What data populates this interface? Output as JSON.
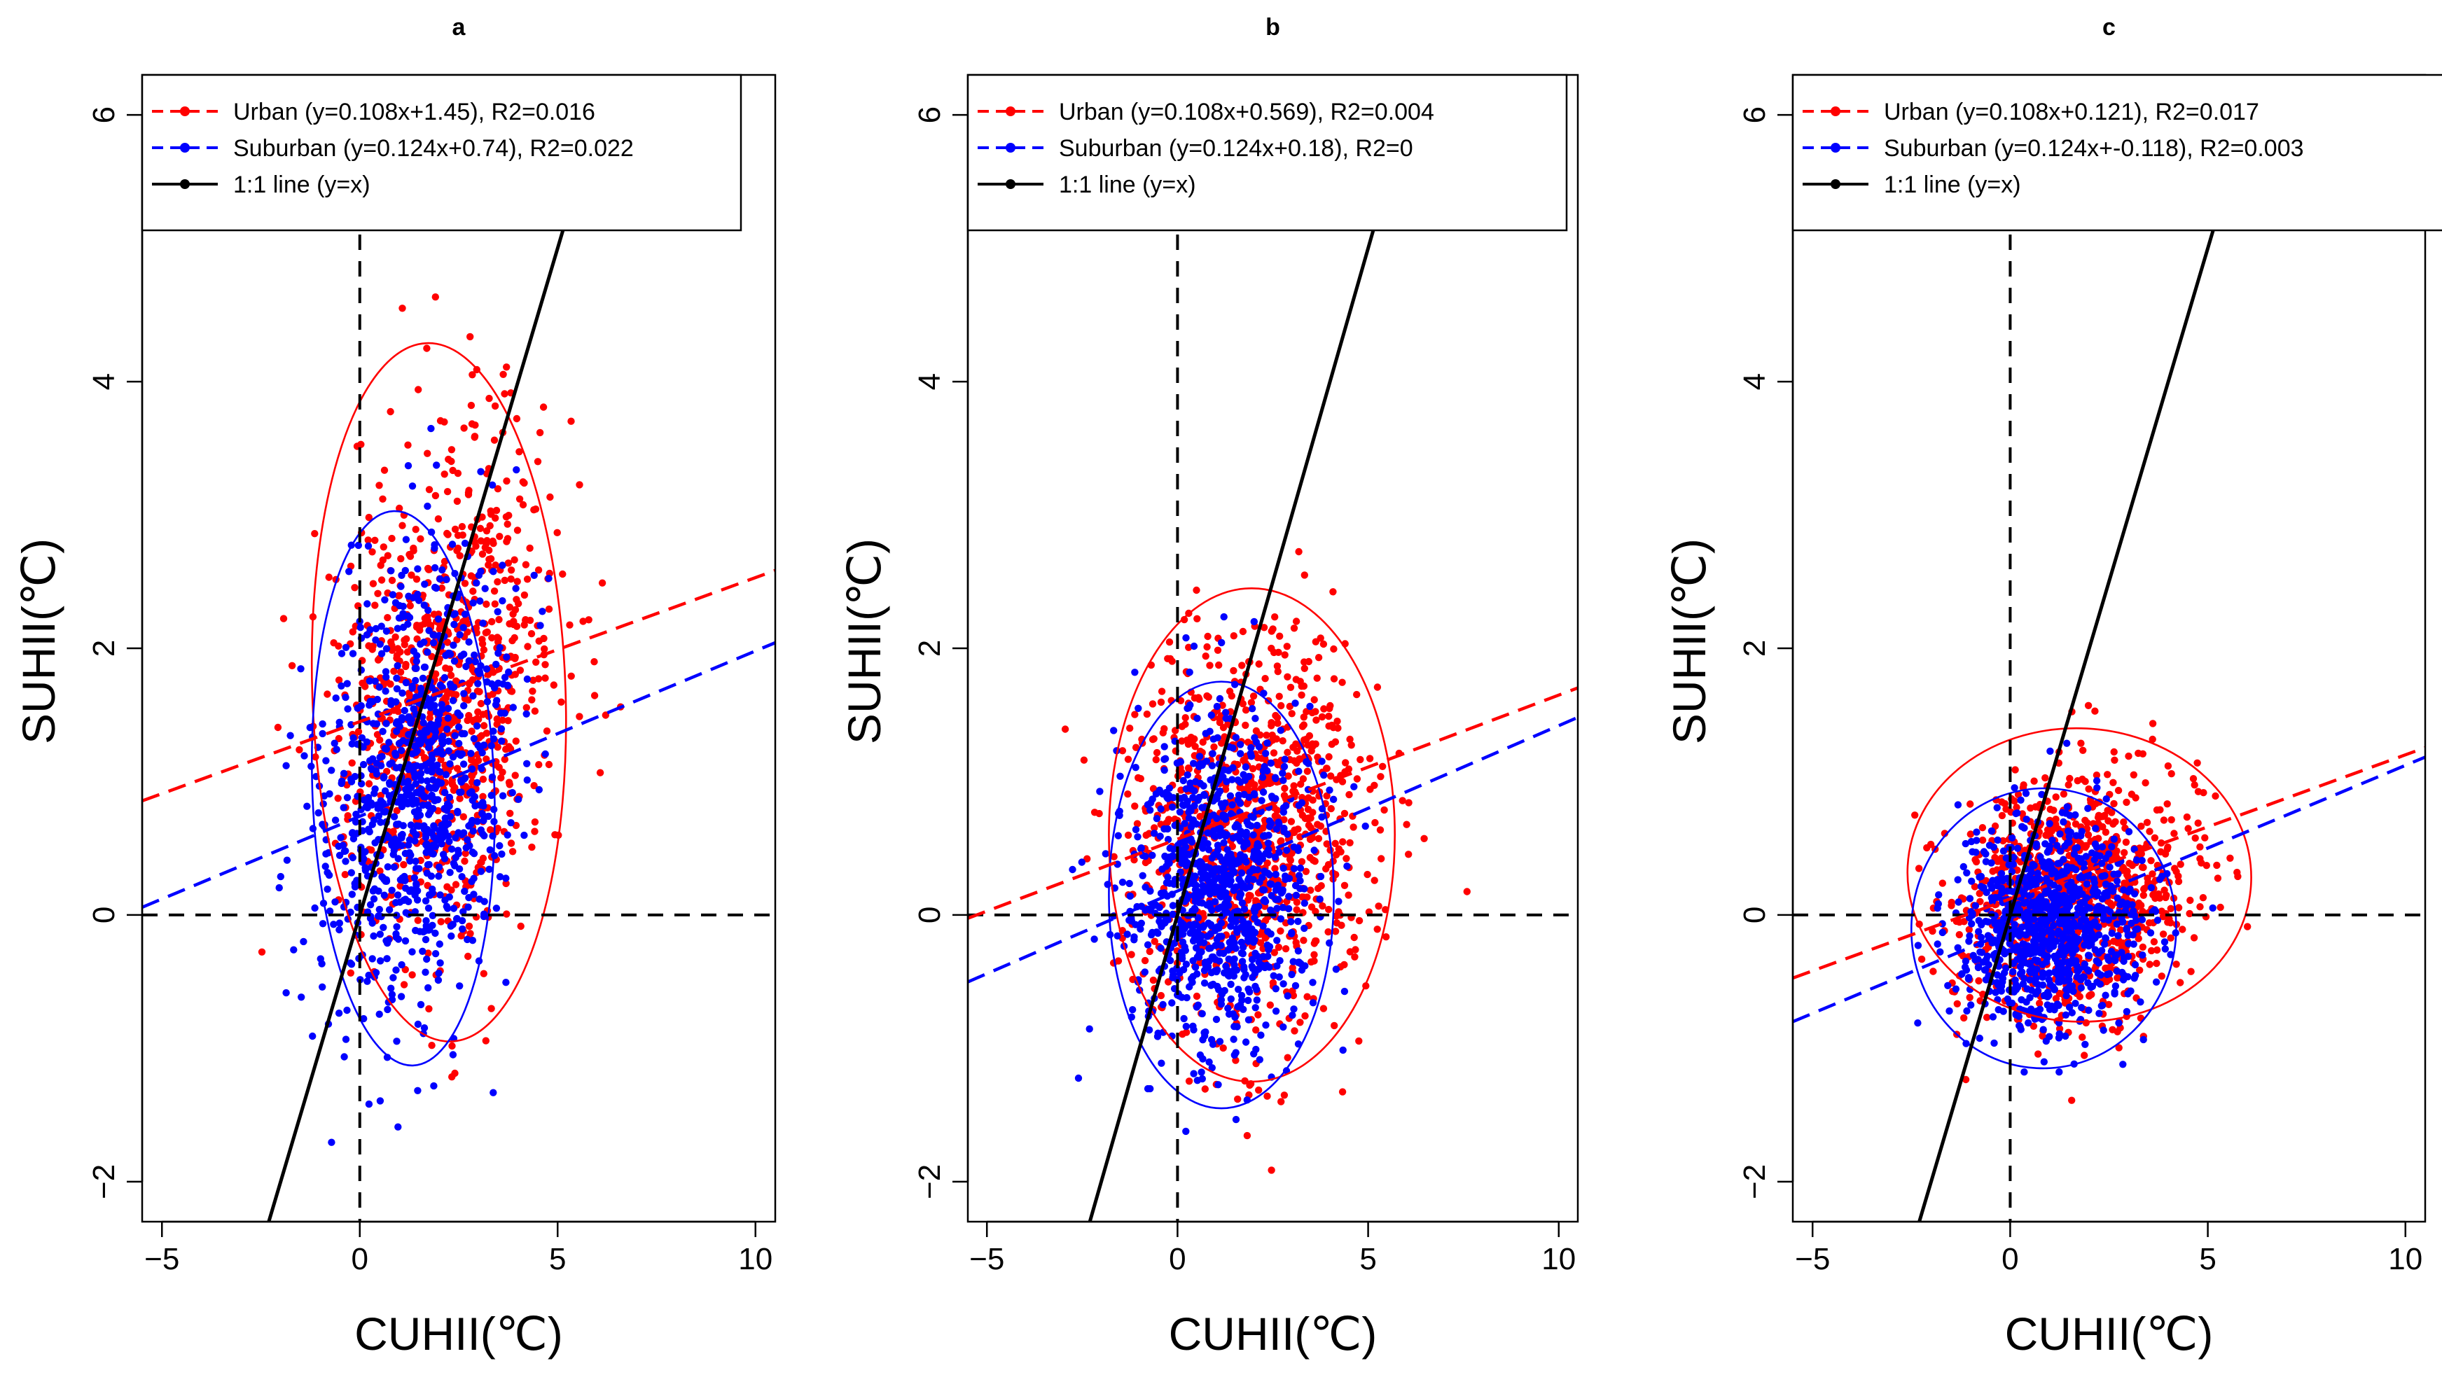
{
  "chart_data": [
    {
      "type": "scatter",
      "panel_label": "a",
      "xlabel": "CUHII(℃)",
      "ylabel": "SUHII(℃)",
      "xlim": [
        -5.5,
        10.5
      ],
      "ylim": [
        -2.3,
        6.3
      ],
      "xticks": [
        -5,
        0,
        5,
        10
      ],
      "yticks": [
        -2,
        0,
        2,
        4,
        6
      ],
      "tick_labels_x": [
        "−5",
        "0",
        "5",
        "10"
      ],
      "tick_labels_y": [
        "−2",
        "0",
        "2",
        "4",
        "6"
      ],
      "reference_lines": {
        "x": 0,
        "y": 0
      },
      "one_to_one_line": {
        "slope": 1,
        "intercept": 0
      },
      "legend": [
        {
          "label": "Urban (y=0.108x+1.45), R2=0.016",
          "color": "#ff0000",
          "style": "dashed-dot"
        },
        {
          "label": "Suburban (y=0.124x+0.74), R2=0.022",
          "color": "#0000ff",
          "style": "dashed-dot"
        },
        {
          "label": "1:1 line (y=x)",
          "color": "#000000",
          "style": "solid-dot"
        }
      ],
      "series": [
        {
          "name": "Urban",
          "color": "#ff0000",
          "fit": {
            "slope": 0.108,
            "intercept": 1.45,
            "r2": 0.016
          },
          "cloud": {
            "mean_x": 2.2,
            "mean_y": 1.7,
            "sd_x": 1.3,
            "sd_y": 0.95,
            "rho": 0.22,
            "n": 900
          },
          "ellipse": {
            "cx": 2.0,
            "cy": 1.67,
            "rx": 3.2,
            "ry": 2.62,
            "angle_deg": 2
          }
        },
        {
          "name": "Suburban",
          "color": "#0000ff",
          "fit": {
            "slope": 0.124,
            "intercept": 0.74,
            "r2": 0.022
          },
          "cloud": {
            "mean_x": 1.3,
            "mean_y": 0.95,
            "sd_x": 1.2,
            "sd_y": 0.85,
            "rho": 0.25,
            "n": 900
          },
          "ellipse": {
            "cx": 1.1,
            "cy": 0.95,
            "rx": 2.3,
            "ry": 2.08,
            "angle_deg": 2
          }
        }
      ]
    },
    {
      "type": "scatter",
      "panel_label": "b",
      "xlabel": "CUHII(℃)",
      "ylabel": "SUHII(℃)",
      "xlim": [
        -5.5,
        10.5
      ],
      "ylim": [
        -2.3,
        6.3
      ],
      "xticks": [
        -5,
        0,
        5,
        10
      ],
      "yticks": [
        -2,
        0,
        2,
        4,
        6
      ],
      "tick_labels_x": [
        "−5",
        "0",
        "5",
        "10"
      ],
      "tick_labels_y": [
        "−2",
        "0",
        "2",
        "4",
        "6"
      ],
      "reference_lines": {
        "x": 0,
        "y": 0
      },
      "one_to_one_line": {
        "slope": 1,
        "intercept": 0
      },
      "legend": [
        {
          "label": "Urban (y=0.108x+0.569), R2=0.004",
          "color": "#ff0000",
          "style": "dashed-dot"
        },
        {
          "label": "Suburban (y=0.124x+0.18), R2=0",
          "color": "#0000ff",
          "style": "dashed-dot"
        },
        {
          "label": "1:1 line (y=x)",
          "color": "#000000",
          "style": "solid-dot"
        }
      ],
      "series": [
        {
          "name": "Urban",
          "color": "#ff0000",
          "fit": {
            "slope": 0.108,
            "intercept": 0.569,
            "r2": 0.004
          },
          "cloud": {
            "mean_x": 1.9,
            "mean_y": 0.65,
            "sd_x": 1.55,
            "sd_y": 0.75,
            "rho": 0.1,
            "n": 950
          },
          "ellipse": {
            "cx": 1.95,
            "cy": 0.6,
            "rx": 3.75,
            "ry": 1.85,
            "angle_deg": 0
          }
        },
        {
          "name": "Suburban",
          "color": "#0000ff",
          "fit": {
            "slope": 0.124,
            "intercept": 0.18,
            "r2": 0
          },
          "cloud": {
            "mean_x": 1.1,
            "mean_y": 0.2,
            "sd_x": 1.2,
            "sd_y": 0.6,
            "rho": 0.05,
            "n": 950
          },
          "ellipse": {
            "cx": 1.15,
            "cy": 0.15,
            "rx": 2.95,
            "ry": 1.6,
            "angle_deg": 0
          }
        }
      ]
    },
    {
      "type": "scatter",
      "panel_label": "c",
      "xlabel": "CUHII(℃)",
      "ylabel": "SUHII(℃)",
      "xlim": [
        -5.5,
        10.5
      ],
      "ylim": [
        -2.3,
        6.3
      ],
      "xticks": [
        -5,
        0,
        5,
        10
      ],
      "yticks": [
        -2,
        0,
        2,
        4,
        6
      ],
      "tick_labels_x": [
        "−5",
        "0",
        "5",
        "10"
      ],
      "tick_labels_y": [
        "−2",
        "0",
        "2",
        "4",
        "6"
      ],
      "reference_lines": {
        "x": 0,
        "y": 0
      },
      "one_to_one_line": {
        "slope": 1,
        "intercept": 0
      },
      "legend": [
        {
          "label": "Urban (y=0.108x+0.121), R2=0.017",
          "color": "#ff0000",
          "style": "dashed-dot"
        },
        {
          "label": "Suburban (y=0.124x+-0.118), R2=0.003",
          "color": "#0000ff",
          "style": "dashed-dot"
        },
        {
          "label": "1:1 line (y=x)",
          "color": "#000000",
          "style": "solid-dot"
        }
      ],
      "series": [
        {
          "name": "Urban",
          "color": "#ff0000",
          "fit": {
            "slope": 0.108,
            "intercept": 0.121,
            "r2": 0.017
          },
          "cloud": {
            "mean_x": 1.6,
            "mean_y": 0.15,
            "sd_x": 1.45,
            "sd_y": 0.45,
            "rho": 0.12,
            "n": 950
          },
          "ellipse": {
            "cx": 1.75,
            "cy": 0.3,
            "rx": 4.35,
            "ry": 1.1,
            "angle_deg": -3
          }
        },
        {
          "name": "Suburban",
          "color": "#0000ff",
          "fit": {
            "slope": 0.124,
            "intercept": -0.118,
            "r2": 0.003
          },
          "cloud": {
            "mean_x": 1.0,
            "mean_y": -0.1,
            "sd_x": 1.15,
            "sd_y": 0.38,
            "rho": 0.08,
            "n": 950
          },
          "ellipse": {
            "cx": 0.85,
            "cy": -0.1,
            "rx": 3.35,
            "ry": 1.05,
            "angle_deg": -3
          }
        }
      ]
    }
  ]
}
